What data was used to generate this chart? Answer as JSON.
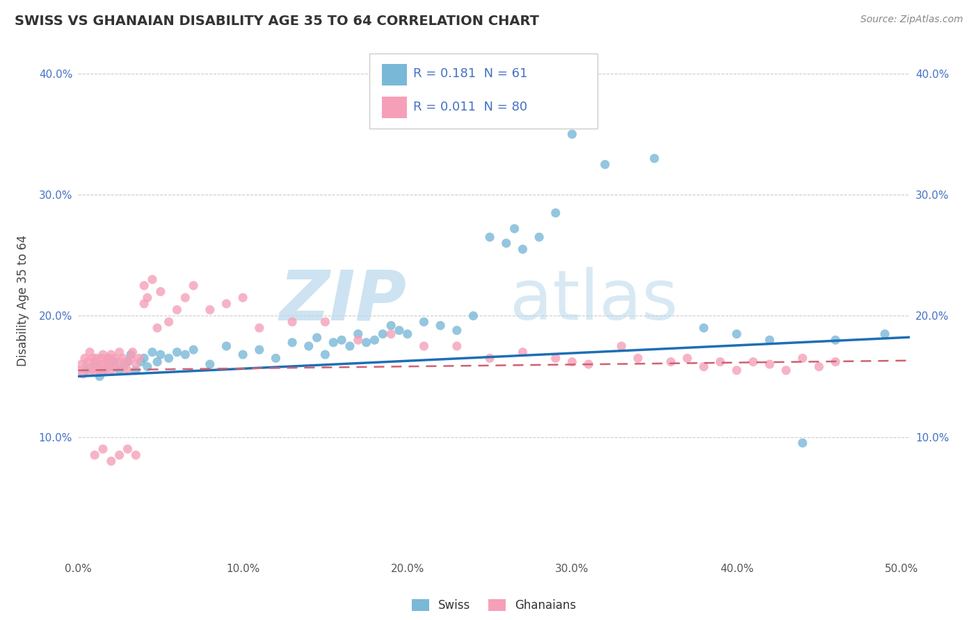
{
  "title": "SWISS VS GHANAIAN DISABILITY AGE 35 TO 64 CORRELATION CHART",
  "source_text": "Source: ZipAtlas.com",
  "ylabel": "Disability Age 35 to 64",
  "xlim": [
    0.0,
    0.505
  ],
  "ylim": [
    0.0,
    0.425
  ],
  "xticks": [
    0.0,
    0.1,
    0.2,
    0.3,
    0.4,
    0.5
  ],
  "yticks": [
    0.1,
    0.2,
    0.3,
    0.4
  ],
  "xticklabels": [
    "0.0%",
    "10.0%",
    "20.0%",
    "30.0%",
    "40.0%",
    "50.0%"
  ],
  "yticklabels": [
    "10.0%",
    "20.0%",
    "30.0%",
    "40.0%"
  ],
  "swiss_color": "#7ab8d8",
  "ghanaian_color": "#f5a0b8",
  "swiss_line_color": "#1f6eb5",
  "ghanaian_line_color": "#d06070",
  "r_swiss": 0.181,
  "n_swiss": 61,
  "r_ghanaian": 0.011,
  "n_ghanaian": 80,
  "watermark_zip": "ZIP",
  "watermark_atlas": "atlas",
  "legend_label_color": "#4472c4",
  "background_color": "#ffffff",
  "title_color": "#333333",
  "source_color": "#888888",
  "swiss_x": [
    0.005,
    0.01,
    0.013,
    0.015,
    0.018,
    0.02,
    0.022,
    0.025,
    0.028,
    0.03,
    0.032,
    0.035,
    0.038,
    0.04,
    0.042,
    0.045,
    0.048,
    0.05,
    0.055,
    0.06,
    0.065,
    0.07,
    0.08,
    0.09,
    0.1,
    0.11,
    0.12,
    0.13,
    0.14,
    0.145,
    0.15,
    0.155,
    0.16,
    0.165,
    0.17,
    0.175,
    0.18,
    0.185,
    0.19,
    0.195,
    0.2,
    0.21,
    0.22,
    0.23,
    0.24,
    0.25,
    0.26,
    0.265,
    0.27,
    0.28,
    0.29,
    0.3,
    0.31,
    0.32,
    0.35,
    0.38,
    0.4,
    0.42,
    0.44,
    0.46,
    0.49
  ],
  "swiss_y": [
    0.155,
    0.16,
    0.15,
    0.155,
    0.165,
    0.158,
    0.162,
    0.155,
    0.16,
    0.162,
    0.168,
    0.155,
    0.162,
    0.165,
    0.158,
    0.17,
    0.162,
    0.168,
    0.165,
    0.17,
    0.168,
    0.172,
    0.16,
    0.175,
    0.168,
    0.172,
    0.165,
    0.178,
    0.175,
    0.182,
    0.168,
    0.178,
    0.18,
    0.175,
    0.185,
    0.178,
    0.18,
    0.185,
    0.192,
    0.188,
    0.185,
    0.195,
    0.192,
    0.188,
    0.2,
    0.265,
    0.26,
    0.272,
    0.255,
    0.265,
    0.285,
    0.35,
    0.362,
    0.325,
    0.33,
    0.19,
    0.185,
    0.18,
    0.095,
    0.18,
    0.185
  ],
  "ghanaian_x": [
    0.0,
    0.002,
    0.003,
    0.004,
    0.005,
    0.006,
    0.007,
    0.008,
    0.009,
    0.01,
    0.01,
    0.011,
    0.012,
    0.013,
    0.014,
    0.015,
    0.015,
    0.016,
    0.017,
    0.018,
    0.019,
    0.02,
    0.02,
    0.021,
    0.022,
    0.023,
    0.025,
    0.025,
    0.027,
    0.028,
    0.03,
    0.03,
    0.032,
    0.033,
    0.035,
    0.037,
    0.04,
    0.04,
    0.042,
    0.045,
    0.048,
    0.05,
    0.055,
    0.06,
    0.065,
    0.07,
    0.08,
    0.09,
    0.1,
    0.11,
    0.13,
    0.15,
    0.17,
    0.19,
    0.21,
    0.23,
    0.25,
    0.27,
    0.29,
    0.3,
    0.31,
    0.33,
    0.34,
    0.36,
    0.37,
    0.38,
    0.39,
    0.4,
    0.41,
    0.42,
    0.43,
    0.44,
    0.45,
    0.46,
    0.01,
    0.015,
    0.02,
    0.025,
    0.03,
    0.035
  ],
  "ghanaian_y": [
    0.155,
    0.16,
    0.152,
    0.165,
    0.158,
    0.162,
    0.17,
    0.155,
    0.165,
    0.155,
    0.162,
    0.165,
    0.16,
    0.155,
    0.165,
    0.16,
    0.168,
    0.155,
    0.162,
    0.158,
    0.165,
    0.168,
    0.155,
    0.16,
    0.165,
    0.158,
    0.17,
    0.162,
    0.165,
    0.158,
    0.162,
    0.155,
    0.165,
    0.17,
    0.16,
    0.165,
    0.21,
    0.225,
    0.215,
    0.23,
    0.19,
    0.22,
    0.195,
    0.205,
    0.215,
    0.225,
    0.205,
    0.21,
    0.215,
    0.19,
    0.195,
    0.195,
    0.18,
    0.185,
    0.175,
    0.175,
    0.165,
    0.17,
    0.165,
    0.162,
    0.16,
    0.175,
    0.165,
    0.162,
    0.165,
    0.158,
    0.162,
    0.155,
    0.162,
    0.16,
    0.155,
    0.165,
    0.158,
    0.162,
    0.085,
    0.09,
    0.08,
    0.085,
    0.09,
    0.085
  ]
}
